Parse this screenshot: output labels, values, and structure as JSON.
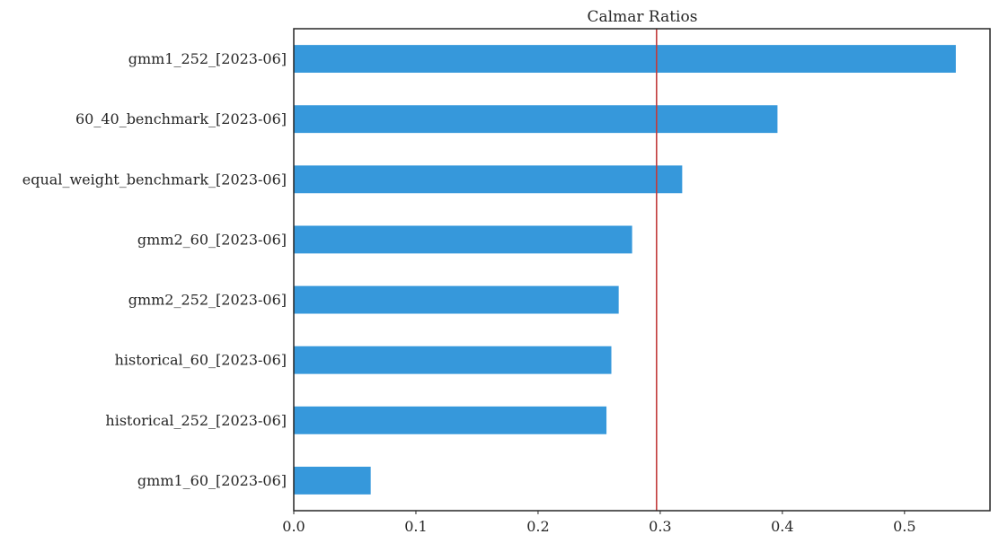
{
  "chart_data": {
    "type": "bar",
    "orientation": "horizontal",
    "title": "Calmar Ratios",
    "xlabel": "",
    "ylabel": "",
    "categories": [
      "gmm1_252_[2023-06]",
      "60_40_benchmark_[2023-06]",
      "equal_weight_benchmark_[2023-06]",
      "gmm2_60_[2023-06]",
      "gmm2_252_[2023-06]",
      "historical_60_[2023-06]",
      "historical_252_[2023-06]",
      "gmm1_60_[2023-06]"
    ],
    "values": [
      0.542,
      0.396,
      0.318,
      0.277,
      0.266,
      0.26,
      0.256,
      0.063
    ],
    "xlim": [
      0.0,
      0.57
    ],
    "xticks": [
      0.0,
      0.1,
      0.2,
      0.3,
      0.4,
      0.5
    ],
    "xtick_labels": [
      "0.0",
      "0.1",
      "0.2",
      "0.3",
      "0.4",
      "0.5"
    ],
    "reference_line": {
      "value": 0.297,
      "color": "#c23b3b"
    },
    "bar_color": "#3698db",
    "grid": false
  }
}
